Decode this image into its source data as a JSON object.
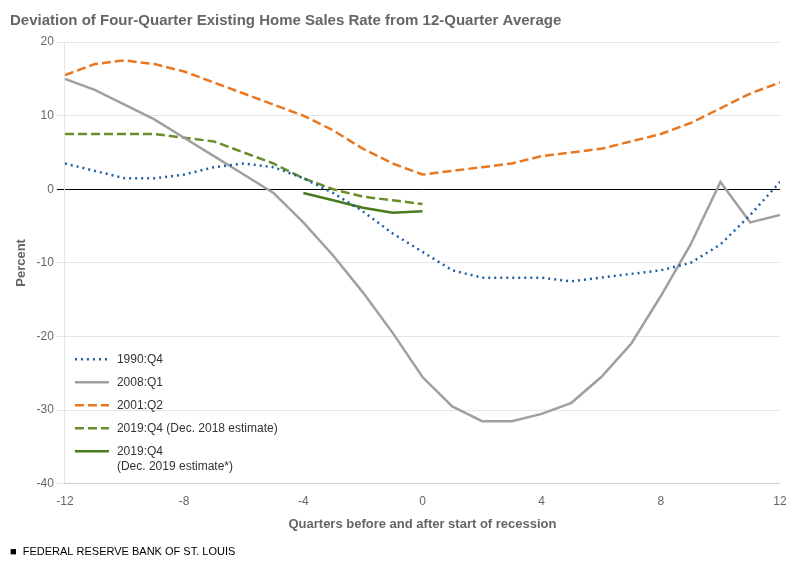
{
  "chart_data": {
    "type": "line",
    "title": "Deviation of Four-Quarter Existing Home Sales Rate from 12-Quarter Average",
    "x_label": "Quarters before and after start of recession",
    "y_label": "Percent",
    "annotations": [
      "■  FEDERAL RESERVE BANK OF ST. LOUIS"
    ],
    "xlim": [
      -12,
      12
    ],
    "xticks": [
      -12,
      -8,
      -4,
      0,
      4,
      8,
      12
    ],
    "ylim": [
      -40,
      20
    ],
    "yticks": [
      -40,
      -30,
      -20,
      -10,
      0,
      10,
      20
    ],
    "grid": "y",
    "legend": "lower left",
    "series": [
      {
        "name": "1990:Q4",
        "color": "#1f5fa6",
        "line_style": "dotted",
        "x": [
          -12,
          -11,
          -10,
          -9,
          -8,
          -7,
          -6,
          -5,
          -4,
          -3,
          -2,
          -1,
          0,
          1,
          2,
          3,
          4,
          5,
          6,
          7,
          8,
          9,
          10,
          11,
          12
        ],
        "values": [
          3.5,
          2.5,
          1.5,
          1.5,
          2.0,
          3.0,
          3.5,
          3.0,
          1.5,
          -0.5,
          -3.0,
          -6.0,
          -8.5,
          -11.0,
          -12.0,
          -12.0,
          -12.0,
          -12.5,
          -12.0,
          -11.5,
          -11.0,
          -10.0,
          -7.5,
          -3.5,
          1.0
        ]
      },
      {
        "name": "2008:Q1",
        "color": "#a0a0a0",
        "line_style": "solid",
        "x": [
          -12,
          -11,
          -10,
          -9,
          -8,
          -7,
          -6,
          -5,
          -4,
          -3,
          -2,
          -1,
          0,
          1,
          2,
          3,
          4,
          5,
          6,
          7,
          8,
          9,
          10,
          11,
          12
        ],
        "values": [
          15.0,
          13.5,
          11.5,
          9.5,
          7.0,
          4.5,
          2.0,
          -0.5,
          -4.5,
          -9.0,
          -14.0,
          -19.5,
          -25.5,
          -29.5,
          -31.5,
          -31.5,
          -30.5,
          -29.0,
          -25.5,
          -21.0,
          -14.5,
          -7.5,
          1.0,
          -4.5,
          -3.5
        ]
      },
      {
        "name": "2001:Q2",
        "color": "#e87722",
        "line_style": "dashed",
        "x": [
          -12,
          -11,
          -10,
          -9,
          -8,
          -7,
          -6,
          -5,
          -4,
          -3,
          -2,
          -1,
          0,
          1,
          2,
          3,
          4,
          5,
          6,
          7,
          8,
          9,
          10,
          11,
          12
        ],
        "values": [
          15.5,
          17.0,
          17.5,
          17.0,
          16.0,
          14.5,
          13.0,
          11.5,
          10.0,
          8.0,
          5.5,
          3.5,
          2.0,
          2.5,
          3.0,
          3.5,
          4.5,
          5.0,
          5.5,
          6.5,
          7.5,
          9.0,
          11.0,
          13.0,
          14.5
        ]
      },
      {
        "name": "2019:Q4 (Dec. 2018 estimate)",
        "color": "#6b8c2a",
        "line_style": "dashed",
        "x": [
          -12,
          -11,
          -10,
          -9,
          -8,
          -7,
          -6,
          -5,
          -4,
          -3,
          -2,
          -1,
          0
        ],
        "values": [
          7.5,
          7.5,
          7.5,
          7.5,
          7.0,
          6.5,
          5.0,
          3.5,
          1.5,
          0.0,
          -1.0,
          -1.5,
          -2.0
        ]
      },
      {
        "name": "2019:Q4\n(Dec. 2019 estimate*)",
        "color": "#4a7a1e",
        "line_style": "solid",
        "x": [
          -4,
          -3,
          -2,
          -1,
          0
        ],
        "values": [
          -0.5,
          -1.5,
          -2.5,
          -3.2,
          -3.0
        ]
      }
    ]
  }
}
